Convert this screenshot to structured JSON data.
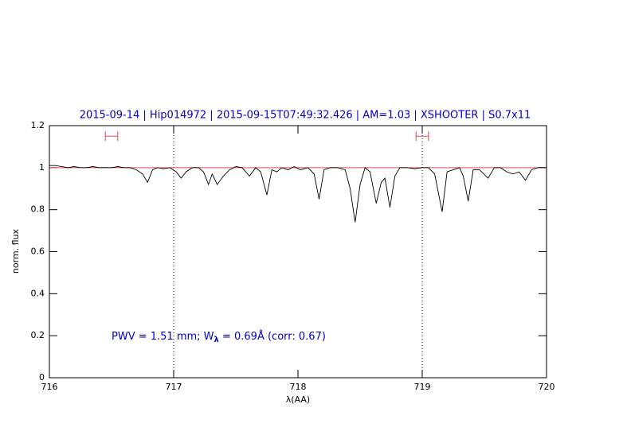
{
  "chart_data": {
    "type": "line",
    "title": "2015-09-14  |  Hip014972  |  2015-09-15T07:49:32.426  |  AM=1.03  |  XSHOOTER  |  S0.7x11",
    "xlabel": "λ(AA)",
    "ylabel": "norm. flux",
    "annotation": {
      "prefix": "PWV = 1.51 mm; W",
      "subscript": "λ",
      "suffix": " = 0.69Å  (corr: 0.67)"
    },
    "x": [
      716.0,
      716.05,
      716.1,
      716.15,
      716.2,
      716.25,
      716.3,
      716.35,
      716.4,
      716.45,
      716.5,
      716.55,
      716.6,
      716.65,
      716.7,
      716.75,
      716.79,
      716.83,
      716.87,
      716.92,
      716.97,
      717.02,
      717.06,
      717.1,
      717.15,
      717.2,
      717.24,
      717.28,
      717.31,
      717.35,
      717.4,
      717.45,
      717.5,
      717.55,
      717.61,
      717.66,
      717.7,
      717.75,
      717.79,
      717.83,
      717.87,
      717.92,
      717.97,
      718.02,
      718.08,
      718.13,
      718.17,
      718.21,
      718.26,
      718.32,
      718.38,
      718.42,
      718.46,
      718.5,
      718.54,
      718.58,
      718.63,
      718.67,
      718.7,
      718.74,
      718.78,
      718.82,
      718.88,
      718.94,
      719.0,
      719.05,
      719.1,
      719.16,
      719.2,
      719.25,
      719.3,
      719.33,
      719.37,
      719.41,
      719.46,
      719.53,
      719.58,
      719.63,
      719.68,
      719.73,
      719.78,
      719.83,
      719.88,
      719.93,
      720.0
    ],
    "series": [
      {
        "name": "spectrum",
        "color": "#000000",
        "values": [
          1.01,
          1.01,
          1.005,
          1.0,
          1.005,
          1.0,
          1.0,
          1.005,
          1.0,
          1.0,
          1.0,
          1.005,
          1.0,
          1.0,
          0.99,
          0.97,
          0.93,
          0.99,
          1.0,
          0.995,
          1.0,
          0.98,
          0.95,
          0.98,
          1.0,
          1.0,
          0.98,
          0.92,
          0.97,
          0.92,
          0.96,
          0.99,
          1.005,
          1.0,
          0.96,
          1.0,
          0.98,
          0.87,
          0.99,
          0.98,
          1.0,
          0.99,
          1.005,
          0.99,
          1.0,
          0.97,
          0.85,
          0.99,
          1.0,
          1.0,
          0.99,
          0.9,
          0.74,
          0.92,
          1.0,
          0.98,
          0.83,
          0.93,
          0.95,
          0.81,
          0.96,
          1.0,
          1.0,
          0.995,
          1.0,
          1.0,
          0.97,
          0.79,
          0.98,
          0.99,
          1.0,
          0.96,
          0.84,
          0.99,
          0.99,
          0.95,
          1.0,
          1.0,
          0.98,
          0.97,
          0.98,
          0.94,
          0.99,
          1.0,
          1.0
        ]
      }
    ],
    "continuum": {
      "value": 1,
      "color": "#e05050"
    },
    "windows": [
      {
        "x": [
          716.45,
          716.55
        ],
        "y": 1.15
      },
      {
        "x": [
          718.95,
          719.05
        ],
        "y": 1.15
      }
    ],
    "vlines": [
      717,
      719
    ],
    "xlim": [
      716,
      720
    ],
    "ylim": [
      0,
      1.2
    ],
    "xticks": [
      716,
      717,
      718,
      719,
      720
    ],
    "yticks": [
      0,
      0.2,
      0.4,
      0.6,
      0.8,
      1,
      1.2
    ],
    "title_color": "#0000cc"
  }
}
